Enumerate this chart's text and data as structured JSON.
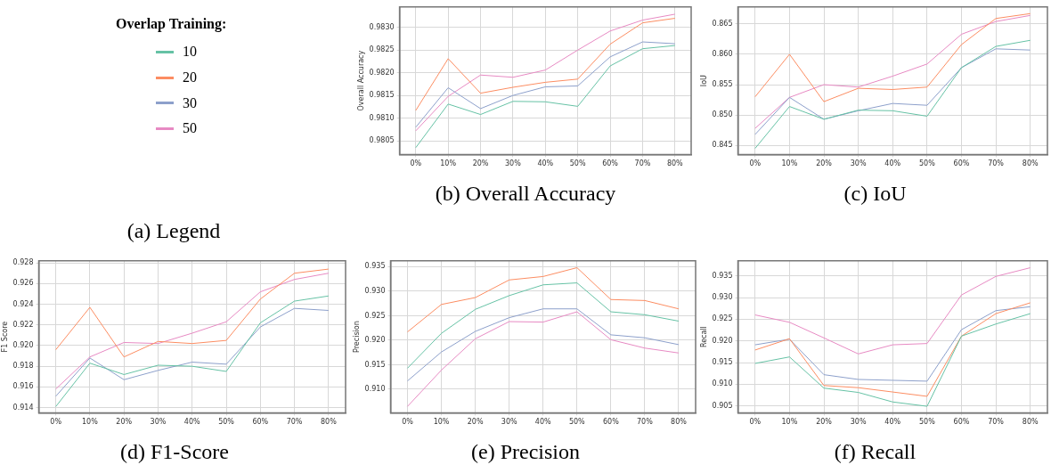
{
  "chart_data": [
    {
      "type": "other",
      "title": "(a) Legend",
      "legend_title": "Overlap Training:",
      "legend": "left",
      "series": [
        {
          "name": "10",
          "color": "#66c2a5"
        },
        {
          "name": "20",
          "color": "#fc8d62"
        },
        {
          "name": "30",
          "color": "#8da0cb"
        },
        {
          "name": "50",
          "color": "#e78ac3"
        }
      ]
    },
    {
      "type": "line",
      "title": "(b) Overall Accuracy",
      "ylabel": "Overall Accuracy",
      "categories": [
        "0%",
        "10%",
        "20%",
        "30%",
        "40%",
        "50%",
        "60%",
        "70%",
        "80%"
      ],
      "ylim": [
        0.9802,
        0.98345
      ],
      "yticks": [
        0.9805,
        {
          "value": 0.981,
          "label": "0.9810"
        },
        0.9815,
        {
          "value": 0.982,
          "label": "0.9820"
        },
        0.9825,
        {
          "value": 0.983,
          "label": "0.9830"
        }
      ],
      "grid": true,
      "marker": "none",
      "line_style": "solid",
      "series": [
        {
          "color": "#66c2a5",
          "values": [
            0.98035,
            0.98131,
            0.98108,
            0.98137,
            0.98136,
            0.98126,
            0.98215,
            0.98253,
            0.9826
          ]
        },
        {
          "color": "#fc8d62",
          "values": [
            0.98117,
            0.98231,
            0.98155,
            0.98168,
            0.98179,
            0.98186,
            0.98263,
            0.9831,
            0.9832
          ]
        },
        {
          "color": "#8da0cb",
          "values": [
            0.9808,
            0.98167,
            0.98121,
            0.9815,
            0.98169,
            0.98171,
            0.98235,
            0.98268,
            0.98264
          ]
        },
        {
          "color": "#e78ac3",
          "values": [
            0.98072,
            0.98148,
            0.98195,
            0.9819,
            0.98206,
            0.9825,
            0.98292,
            0.98316,
            0.98329
          ]
        }
      ]
    },
    {
      "type": "line",
      "title": "(c) IoU",
      "ylabel": "IoU",
      "categories": [
        "0%",
        "10%",
        "20%",
        "30%",
        "40%",
        "50%",
        "60%",
        "70%",
        "80%"
      ],
      "ylim": [
        0.8435,
        0.8678
      ],
      "yticks": [
        0.845,
        {
          "value": 0.85,
          "label": "0.850"
        },
        0.855,
        {
          "value": 0.86,
          "label": "0.860"
        },
        0.865
      ],
      "grid": true,
      "marker": "none",
      "line_style": "solid",
      "series": [
        {
          "color": "#66c2a5",
          "values": [
            0.8445,
            0.8514,
            0.8493,
            0.8508,
            0.8507,
            0.8498,
            0.8578,
            0.8613,
            0.8623
          ]
        },
        {
          "color": "#fc8d62",
          "values": [
            0.853,
            0.86,
            0.8522,
            0.8544,
            0.8542,
            0.8546,
            0.8616,
            0.8659,
            0.8667
          ]
        },
        {
          "color": "#8da0cb",
          "values": [
            0.8468,
            0.8529,
            0.8493,
            0.8507,
            0.8519,
            0.8516,
            0.8578,
            0.8609,
            0.8607
          ]
        },
        {
          "color": "#e78ac3",
          "values": [
            0.8478,
            0.8529,
            0.855,
            0.8546,
            0.8564,
            0.8584,
            0.8633,
            0.8654,
            0.8664
          ]
        }
      ]
    },
    {
      "type": "line",
      "title": "(d) F1-Score",
      "ylabel": "F1 Score",
      "categories": [
        "0%",
        "10%",
        "20%",
        "30%",
        "40%",
        "50%",
        "60%",
        "70%",
        "80%"
      ],
      "ylim": [
        0.9135,
        0.9282
      ],
      "yticks": [
        0.914,
        0.916,
        0.918,
        {
          "value": 0.92,
          "label": "0.920"
        },
        0.922,
        0.924,
        0.926,
        0.928
      ],
      "grid": true,
      "marker": "none",
      "line_style": "solid",
      "series": [
        {
          "color": "#66c2a5",
          "values": [
            0.9141,
            0.9183,
            0.9172,
            0.9181,
            0.918,
            0.9175,
            0.9222,
            0.9243,
            0.9248
          ]
        },
        {
          "color": "#fc8d62",
          "values": [
            0.9196,
            0.9237,
            0.9189,
            0.9204,
            0.9202,
            0.9205,
            0.9245,
            0.927,
            0.9274
          ]
        },
        {
          "color": "#8da0cb",
          "values": [
            0.9151,
            0.9188,
            0.9167,
            0.9176,
            0.9184,
            0.9182,
            0.9218,
            0.9236,
            0.9234
          ]
        },
        {
          "color": "#e78ac3",
          "values": [
            0.9158,
            0.9189,
            0.9203,
            0.9202,
            0.9212,
            0.9223,
            0.9252,
            0.9264,
            0.927
          ]
        }
      ]
    },
    {
      "type": "line",
      "title": "(e) Precision",
      "ylabel": "Precision",
      "categories": [
        "0%",
        "10%",
        "20%",
        "30%",
        "40%",
        "50%",
        "60%",
        "70%",
        "80%"
      ],
      "ylim": [
        0.9052,
        0.9362
      ],
      "yticks": [
        {
          "value": 0.91,
          "label": "0.910"
        },
        0.915,
        {
          "value": 0.92,
          "label": "0.920"
        },
        0.925,
        {
          "value": 0.93,
          "label": "0.930"
        },
        0.935
      ],
      "grid": true,
      "marker": "none",
      "line_style": "solid",
      "series": [
        {
          "color": "#66c2a5",
          "values": [
            0.9143,
            0.9214,
            0.9263,
            0.9291,
            0.9313,
            0.9317,
            0.9258,
            0.9252,
            0.9239
          ]
        },
        {
          "color": "#fc8d62",
          "values": [
            0.9217,
            0.9273,
            0.9287,
            0.9323,
            0.933,
            0.9348,
            0.9283,
            0.9281,
            0.9264
          ]
        },
        {
          "color": "#8da0cb",
          "values": [
            0.9117,
            0.9176,
            0.9218,
            0.9246,
            0.9264,
            0.9264,
            0.9211,
            0.9205,
            0.9191
          ]
        },
        {
          "color": "#e78ac3",
          "values": [
            0.9065,
            0.9139,
            0.9203,
            0.9238,
            0.9237,
            0.9258,
            0.9201,
            0.9184,
            0.9174
          ]
        }
      ]
    },
    {
      "type": "line",
      "title": "(f) Recall",
      "ylabel": "Recall",
      "categories": [
        "0%",
        "10%",
        "20%",
        "30%",
        "40%",
        "50%",
        "60%",
        "70%",
        "80%"
      ],
      "ylim": [
        0.9034,
        0.9385
      ],
      "yticks": [
        0.905,
        {
          "value": 0.91,
          "label": "0.910"
        },
        0.915,
        {
          "value": 0.92,
          "label": "0.920"
        },
        0.925,
        {
          "value": 0.93,
          "label": "0.930"
        },
        0.935
      ],
      "grid": true,
      "marker": "none",
      "line_style": "solid",
      "series": [
        {
          "color": "#66c2a5",
          "values": [
            0.9148,
            0.9163,
            0.9091,
            0.9081,
            0.9059,
            0.9049,
            0.9211,
            0.9239,
            0.9263
          ]
        },
        {
          "color": "#fc8d62",
          "values": [
            0.9179,
            0.9205,
            0.9097,
            0.9092,
            0.9082,
            0.9072,
            0.9211,
            0.9263,
            0.9288
          ]
        },
        {
          "color": "#8da0cb",
          "values": [
            0.9191,
            0.9204,
            0.9122,
            0.9111,
            0.9109,
            0.9107,
            0.9226,
            0.927,
            0.9279
          ]
        },
        {
          "color": "#e78ac3",
          "values": [
            0.926,
            0.9243,
            0.9207,
            0.917,
            0.9191,
            0.9194,
            0.9306,
            0.9349,
            0.9369
          ]
        }
      ]
    }
  ]
}
